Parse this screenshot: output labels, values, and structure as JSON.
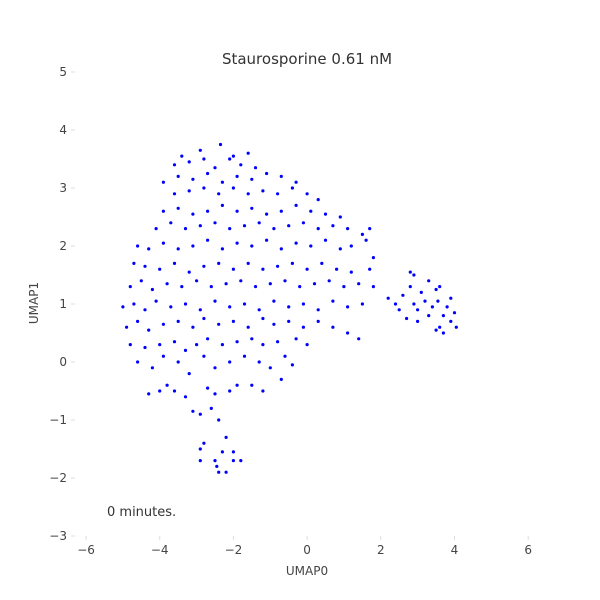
{
  "chart_data": {
    "type": "scatter",
    "title": "Staurosporine 0.61 nM",
    "xlabel": "UMAP0",
    "ylabel": "UMAP1",
    "xlim": [
      -6.3,
      7
    ],
    "ylim": [
      -3,
      5
    ],
    "xticks": [
      -6,
      -4,
      -2,
      0,
      2,
      4,
      6
    ],
    "yticks": [
      -3,
      -2,
      -1,
      0,
      1,
      2,
      3,
      4,
      5
    ],
    "xtick_labels": [
      "−6",
      "−4",
      "−2",
      "0",
      "2",
      "4",
      "6"
    ],
    "ytick_labels": [
      "−3",
      "−2",
      "−1",
      "0",
      "1",
      "2",
      "3",
      "4",
      "5"
    ],
    "grid": false,
    "annotation": "0 minutes.",
    "point_color": "#0000ff",
    "series": [
      {
        "points": [
          [
            -2.4,
            -1.9
          ],
          [
            -2.2,
            -1.9
          ],
          [
            -2.9,
            -1.7
          ],
          [
            -2.5,
            -1.7
          ],
          [
            -2.0,
            -1.7
          ],
          [
            -1.8,
            -1.7
          ],
          [
            -2.3,
            -1.55
          ],
          [
            -2.9,
            -1.5
          ],
          [
            -2.8,
            -1.4
          ],
          [
            -2.2,
            -1.3
          ],
          [
            -2.0,
            -1.55
          ],
          [
            -2.45,
            -1.8
          ],
          [
            -2.4,
            -1.0
          ],
          [
            -2.6,
            -0.8
          ],
          [
            -3.1,
            -0.85
          ],
          [
            -2.9,
            -0.9
          ],
          [
            -2.5,
            -0.55
          ],
          [
            -2.1,
            -0.5
          ],
          [
            -3.3,
            -0.6
          ],
          [
            -3.6,
            -0.5
          ],
          [
            -4.3,
            -0.55
          ],
          [
            -4.0,
            -0.5
          ],
          [
            -3.8,
            -0.4
          ],
          [
            -2.7,
            -0.45
          ],
          [
            -1.9,
            -0.4
          ],
          [
            -1.5,
            -0.4
          ],
          [
            -1.2,
            -0.5
          ],
          [
            -0.7,
            -0.3
          ],
          [
            -4.6,
            0.0
          ],
          [
            -4.2,
            -0.1
          ],
          [
            -3.9,
            0.1
          ],
          [
            -3.5,
            0.0
          ],
          [
            -3.2,
            -0.2
          ],
          [
            -2.8,
            0.1
          ],
          [
            -2.5,
            -0.1
          ],
          [
            -2.1,
            0.0
          ],
          [
            -1.7,
            0.1
          ],
          [
            -1.3,
            0.0
          ],
          [
            -1.0,
            -0.1
          ],
          [
            -0.6,
            0.1
          ],
          [
            -0.4,
            -0.05
          ],
          [
            -4.8,
            0.3
          ],
          [
            -4.4,
            0.25
          ],
          [
            -4.0,
            0.3
          ],
          [
            -3.6,
            0.35
          ],
          [
            -3.3,
            0.2
          ],
          [
            -3.0,
            0.3
          ],
          [
            -2.7,
            0.4
          ],
          [
            -2.3,
            0.3
          ],
          [
            -1.9,
            0.35
          ],
          [
            -1.5,
            0.4
          ],
          [
            -1.2,
            0.3
          ],
          [
            -0.8,
            0.35
          ],
          [
            -0.3,
            0.4
          ],
          [
            0.0,
            0.3
          ],
          [
            -4.9,
            0.6
          ],
          [
            -4.6,
            0.7
          ],
          [
            -4.3,
            0.55
          ],
          [
            -3.9,
            0.65
          ],
          [
            -3.5,
            0.7
          ],
          [
            -3.1,
            0.6
          ],
          [
            -2.8,
            0.75
          ],
          [
            -2.4,
            0.65
          ],
          [
            -2.0,
            0.7
          ],
          [
            -1.6,
            0.6
          ],
          [
            -1.2,
            0.75
          ],
          [
            -0.9,
            0.65
          ],
          [
            -0.5,
            0.7
          ],
          [
            -0.1,
            0.6
          ],
          [
            0.3,
            0.7
          ],
          [
            0.7,
            0.6
          ],
          [
            1.1,
            0.5
          ],
          [
            1.4,
            0.4
          ],
          [
            -5.0,
            0.95
          ],
          [
            -4.7,
            1.0
          ],
          [
            -4.4,
            0.9
          ],
          [
            -4.1,
            1.05
          ],
          [
            -3.7,
            0.95
          ],
          [
            -3.3,
            1.0
          ],
          [
            -2.9,
            0.9
          ],
          [
            -2.5,
            1.05
          ],
          [
            -2.1,
            0.95
          ],
          [
            -1.7,
            1.0
          ],
          [
            -1.3,
            0.9
          ],
          [
            -0.9,
            1.05
          ],
          [
            -0.5,
            0.95
          ],
          [
            -0.1,
            1.0
          ],
          [
            0.3,
            0.9
          ],
          [
            0.7,
            1.05
          ],
          [
            1.1,
            0.95
          ],
          [
            1.5,
            1.0
          ],
          [
            -4.8,
            1.3
          ],
          [
            -4.5,
            1.4
          ],
          [
            -4.2,
            1.25
          ],
          [
            -3.8,
            1.35
          ],
          [
            -3.4,
            1.3
          ],
          [
            -3.0,
            1.4
          ],
          [
            -2.6,
            1.3
          ],
          [
            -2.2,
            1.35
          ],
          [
            -1.8,
            1.4
          ],
          [
            -1.4,
            1.3
          ],
          [
            -1.0,
            1.35
          ],
          [
            -0.6,
            1.4
          ],
          [
            -0.2,
            1.3
          ],
          [
            0.2,
            1.35
          ],
          [
            0.6,
            1.4
          ],
          [
            1.0,
            1.3
          ],
          [
            1.4,
            1.35
          ],
          [
            1.8,
            1.3
          ],
          [
            -4.7,
            1.7
          ],
          [
            -4.4,
            1.65
          ],
          [
            -4.0,
            1.6
          ],
          [
            -3.6,
            1.7
          ],
          [
            -3.2,
            1.55
          ],
          [
            -2.8,
            1.65
          ],
          [
            -2.4,
            1.7
          ],
          [
            -2.0,
            1.6
          ],
          [
            -1.6,
            1.7
          ],
          [
            -1.2,
            1.6
          ],
          [
            -0.8,
            1.65
          ],
          [
            -0.4,
            1.7
          ],
          [
            0.0,
            1.6
          ],
          [
            0.4,
            1.7
          ],
          [
            0.8,
            1.6
          ],
          [
            1.2,
            1.55
          ],
          [
            1.7,
            1.6
          ],
          [
            -4.6,
            2.0
          ],
          [
            -4.3,
            1.95
          ],
          [
            -3.9,
            2.05
          ],
          [
            -3.5,
            1.95
          ],
          [
            -3.1,
            2.0
          ],
          [
            -2.7,
            2.1
          ],
          [
            -2.3,
            1.95
          ],
          [
            -1.9,
            2.05
          ],
          [
            -1.5,
            2.0
          ],
          [
            -1.1,
            2.1
          ],
          [
            -0.7,
            1.95
          ],
          [
            -0.3,
            2.05
          ],
          [
            0.1,
            2.0
          ],
          [
            0.5,
            2.1
          ],
          [
            0.9,
            1.95
          ],
          [
            1.2,
            2.0
          ],
          [
            1.6,
            2.1
          ],
          [
            1.8,
            1.8
          ],
          [
            -4.1,
            2.3
          ],
          [
            -3.7,
            2.4
          ],
          [
            -3.3,
            2.3
          ],
          [
            -2.9,
            2.35
          ],
          [
            -2.5,
            2.4
          ],
          [
            -2.1,
            2.3
          ],
          [
            -1.7,
            2.35
          ],
          [
            -1.3,
            2.4
          ],
          [
            -0.9,
            2.3
          ],
          [
            -0.5,
            2.35
          ],
          [
            -0.1,
            2.4
          ],
          [
            0.3,
            2.3
          ],
          [
            0.7,
            2.35
          ],
          [
            1.1,
            2.3
          ],
          [
            1.5,
            2.2
          ],
          [
            1.7,
            2.3
          ],
          [
            -3.9,
            2.6
          ],
          [
            -3.5,
            2.65
          ],
          [
            -3.1,
            2.55
          ],
          [
            -2.7,
            2.6
          ],
          [
            -2.3,
            2.7
          ],
          [
            -1.9,
            2.6
          ],
          [
            -1.5,
            2.65
          ],
          [
            -1.1,
            2.55
          ],
          [
            -0.7,
            2.6
          ],
          [
            -0.3,
            2.7
          ],
          [
            0.1,
            2.6
          ],
          [
            0.5,
            2.55
          ],
          [
            0.9,
            2.5
          ],
          [
            -3.6,
            2.9
          ],
          [
            -3.2,
            2.95
          ],
          [
            -2.8,
            3.0
          ],
          [
            -2.4,
            2.9
          ],
          [
            -2.0,
            3.0
          ],
          [
            -1.6,
            2.9
          ],
          [
            -1.2,
            2.95
          ],
          [
            -0.8,
            2.9
          ],
          [
            -0.4,
            3.0
          ],
          [
            0.0,
            2.9
          ],
          [
            0.3,
            2.8
          ],
          [
            -3.9,
            3.1
          ],
          [
            -3.5,
            3.2
          ],
          [
            -3.1,
            3.15
          ],
          [
            -2.7,
            3.25
          ],
          [
            -2.3,
            3.1
          ],
          [
            -1.9,
            3.2
          ],
          [
            -1.5,
            3.15
          ],
          [
            -1.1,
            3.25
          ],
          [
            -0.7,
            3.2
          ],
          [
            -0.3,
            3.1
          ],
          [
            -3.6,
            3.4
          ],
          [
            -3.2,
            3.45
          ],
          [
            -2.8,
            3.5
          ],
          [
            -2.5,
            3.35
          ],
          [
            -2.1,
            3.5
          ],
          [
            -1.8,
            3.4
          ],
          [
            -1.4,
            3.35
          ],
          [
            -3.4,
            3.55
          ],
          [
            -2.9,
            3.65
          ],
          [
            -2.35,
            3.75
          ],
          [
            -2.0,
            3.55
          ],
          [
            -1.6,
            3.6
          ],
          [
            2.2,
            1.1
          ],
          [
            2.4,
            1.0
          ],
          [
            2.6,
            1.15
          ],
          [
            2.8,
            1.3
          ],
          [
            2.9,
            1.0
          ],
          [
            3.0,
            0.9
          ],
          [
            3.1,
            1.2
          ],
          [
            3.2,
            1.05
          ],
          [
            3.3,
            0.8
          ],
          [
            3.4,
            0.95
          ],
          [
            3.5,
            1.25
          ],
          [
            3.55,
            1.05
          ],
          [
            3.6,
            0.6
          ],
          [
            3.7,
            0.8
          ],
          [
            3.8,
            0.95
          ],
          [
            3.9,
            0.7
          ],
          [
            4.0,
            0.85
          ],
          [
            4.05,
            0.6
          ],
          [
            3.7,
            0.5
          ],
          [
            3.5,
            0.55
          ],
          [
            2.9,
            1.5
          ],
          [
            3.3,
            1.4
          ],
          [
            2.7,
            0.75
          ],
          [
            3.0,
            0.7
          ],
          [
            2.5,
            0.9
          ],
          [
            3.9,
            1.1
          ],
          [
            3.6,
            1.3
          ],
          [
            2.8,
            1.55
          ]
        ]
      }
    ]
  }
}
